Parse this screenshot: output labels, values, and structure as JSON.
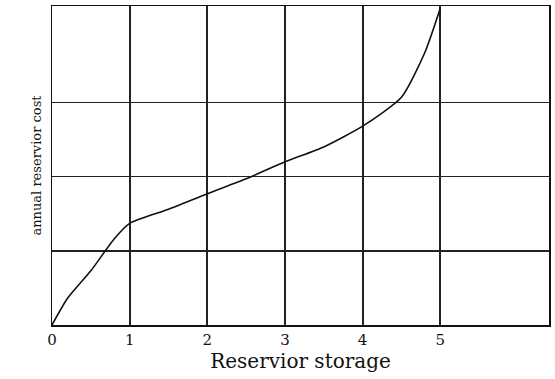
{
  "chart_data": {
    "type": "line",
    "x_label": "Reservior storage",
    "y_label": "annual reservior cost",
    "x": [
      0,
      0.2,
      0.5,
      0.8,
      1,
      1.5,
      2,
      2.5,
      3,
      3.5,
      4,
      4.5,
      4.8,
      5
    ],
    "values": [
      0,
      0.36,
      0.73,
      1.16,
      1.37,
      1.56,
      1.77,
      1.97,
      2.2,
      2.4,
      2.68,
      3.07,
      3.67,
      4.27
    ],
    "color": "#111111",
    "xlim": [
      0,
      6.4
    ],
    "xticks": [
      0,
      1,
      2,
      3,
      4,
      5
    ],
    "ylim": [
      0,
      4.3
    ],
    "yticks": [
      1,
      2,
      3
    ],
    "grid": true,
    "tick_labels": "x"
  }
}
